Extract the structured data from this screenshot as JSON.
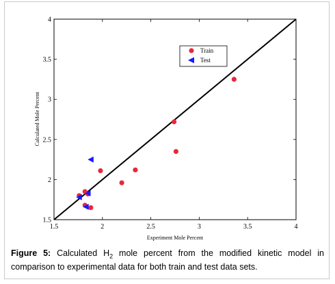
{
  "chart_data": {
    "type": "scatter",
    "title": "",
    "xlabel": "Experiment Mole Percent",
    "ylabel": "Calculated Mole Percent",
    "xlim": [
      1.5,
      4
    ],
    "ylim": [
      1.5,
      4
    ],
    "xticks": [
      "1.5",
      "2",
      "2.5",
      "3",
      "3.5",
      "4"
    ],
    "yticks": [
      "1.5",
      "2",
      "2.5",
      "3",
      "3.5",
      "4"
    ],
    "reference_line": {
      "from": [
        1.5,
        1.5
      ],
      "to": [
        4,
        4
      ],
      "color": "#000000"
    },
    "legend_position": "top-right",
    "series": [
      {
        "name": "Train",
        "marker": "circle",
        "color": "#e8283c",
        "points": [
          [
            1.76,
            1.8
          ],
          [
            1.82,
            1.85
          ],
          [
            1.85,
            1.82
          ],
          [
            1.82,
            1.68
          ],
          [
            1.88,
            1.65
          ],
          [
            1.98,
            2.11
          ],
          [
            2.2,
            1.96
          ],
          [
            2.34,
            2.12
          ],
          [
            2.74,
            2.72
          ],
          [
            2.76,
            2.35
          ],
          [
            3.36,
            3.25
          ]
        ]
      },
      {
        "name": "Test",
        "marker": "triangle-left",
        "color": "#1a1aff",
        "points": [
          [
            1.88,
            2.25
          ],
          [
            1.85,
            1.83
          ],
          [
            1.76,
            1.78
          ],
          [
            1.83,
            1.66
          ]
        ]
      }
    ]
  },
  "caption": {
    "label": "Figure 5:",
    "text_before_sub": " Calculated H",
    "sub": "2",
    "text_after_sub": " mole percent from the modified kinetic model in comparison to experimental data for both train and test data sets."
  }
}
